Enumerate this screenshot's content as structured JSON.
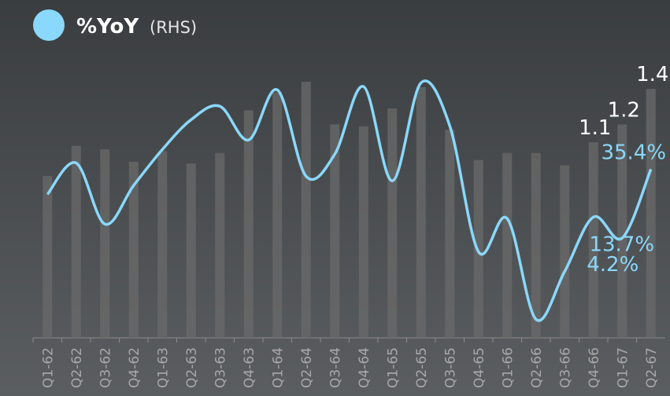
{
  "chart_data": {
    "type": "bar_line",
    "categories": [
      "Q1-62",
      "Q2-62",
      "Q3-62",
      "Q4-62",
      "Q1-63",
      "Q2-63",
      "Q3-63",
      "Q4-63",
      "Q1-64",
      "Q2-64",
      "Q3-64",
      "Q4-64",
      "Q1-65",
      "Q2-65",
      "Q3-65",
      "Q4-65",
      "Q1-66",
      "Q2-66",
      "Q3-66",
      "Q4-66",
      "Q1-67",
      "Q2-67"
    ],
    "legend_suffix": "(RHS)",
    "ylim": [
      0,
      1.9
    ],
    "y2lim": [
      -41,
      112
    ],
    "series": [
      {
        "type": "bar",
        "color": "#6a6a6a",
        "values": [
          0.91,
          1.08,
          1.06,
          0.99,
          1.05,
          0.98,
          1.04,
          1.28,
          1.38,
          1.44,
          1.2,
          1.19,
          1.29,
          1.41,
          1.17,
          1.0,
          1.04,
          1.04,
          0.97,
          1.1,
          1.2,
          1.4
        ],
        "value_labels": [
          null,
          null,
          null,
          null,
          null,
          null,
          null,
          null,
          null,
          null,
          null,
          null,
          null,
          null,
          null,
          null,
          null,
          null,
          null,
          "1.1",
          "1.2",
          "1.4"
        ]
      },
      {
        "type": "line",
        "name": "%YoY",
        "axis": "y2",
        "color": "#8ad8fb",
        "values": [
          24.0,
          38.2,
          10.5,
          28.0,
          44.3,
          57.8,
          63.9,
          48.6,
          71.3,
          32.2,
          42.2,
          72.8,
          30.1,
          74.5,
          55.0,
          -2.0,
          13.0,
          -32.6,
          -10.9,
          13.7,
          4.2,
          35.4
        ],
        "value_labels": [
          null,
          null,
          null,
          null,
          null,
          null,
          null,
          null,
          null,
          null,
          null,
          null,
          null,
          null,
          null,
          null,
          null,
          null,
          null,
          "13.7%",
          "4.2%",
          "35.4%"
        ]
      }
    ]
  }
}
